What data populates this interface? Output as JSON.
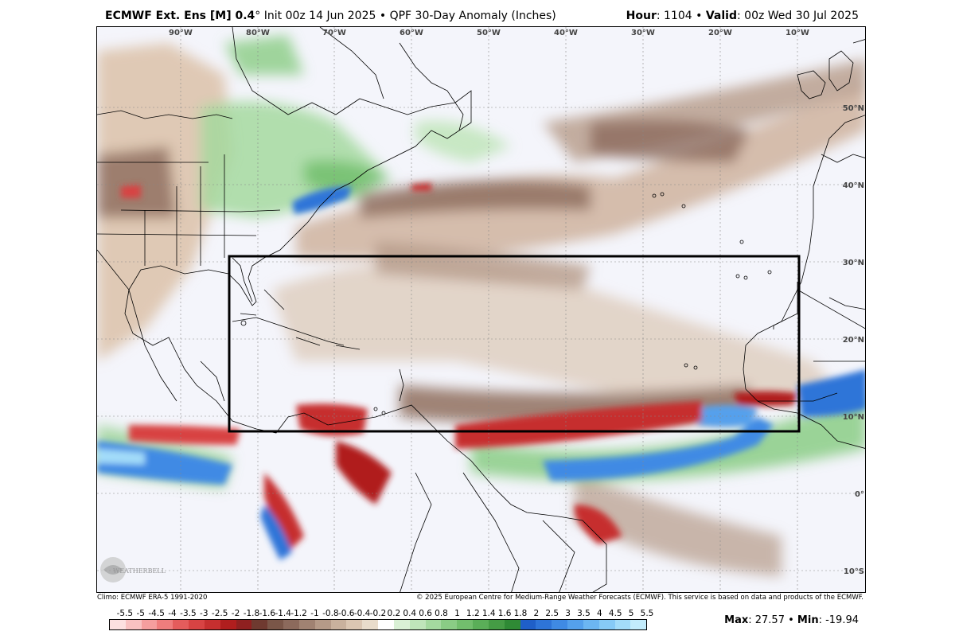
{
  "header": {
    "model": "ECMWF Ext. Ens [M] 0.4",
    "degree": "°",
    "init": " Init 00z 14 Jun 2025",
    "bullet": " • ",
    "product": "QPF 30-Day Anomaly (Inches)",
    "hour_label": "Hour",
    "hour_value": ": 1104",
    "valid_label": "Valid",
    "valid_value": ": 00z Wed 30 Jul 2025"
  },
  "map": {
    "longitudes": [
      "90°W",
      "80°W",
      "70°W",
      "60°W",
      "50°W",
      "40°W",
      "30°W",
      "20°W",
      "10°W"
    ],
    "latitudes": [
      "50°N",
      "40°N",
      "30°N",
      "20°N",
      "10°N",
      "0°",
      "10°S"
    ],
    "logo_text": "WEATHERBELL"
  },
  "footer": {
    "climo": "Climo: ECMWF ERA-5 1991-2020",
    "copyright": "© 2025 European Centre for Medium-Range Weather Forecasts (ECMWF). This service is based on data and products of the ECMWF."
  },
  "colorbar": {
    "labels": [
      "-5.5",
      "-5",
      "-4.5",
      "-4",
      "-3.5",
      "-3",
      "-2.5",
      "-2",
      "-1.8",
      "-1.6",
      "-1.4",
      "-1.2",
      "-1",
      "-0.8",
      "-0.6",
      "-0.4",
      "-0.2",
      "0.2",
      "0.4",
      "0.6",
      "0.8",
      "1",
      "1.2",
      "1.4",
      "1.6",
      "1.8",
      "2",
      "2.5",
      "3",
      "3.5",
      "4",
      "4.5",
      "5",
      "5.5"
    ],
    "colors": [
      "#fde0e0",
      "#f9c1c1",
      "#f59e9e",
      "#ef7d7d",
      "#e45c5c",
      "#d84343",
      "#c62f2f",
      "#b01e1e",
      "#8f2020",
      "#6f3a30",
      "#7a5648",
      "#8c6a5c",
      "#a08272",
      "#b59a88",
      "#c9b19d",
      "#dbc6b2",
      "#e9dccb",
      "#ffffff",
      "#d9f0d5",
      "#bfe5ba",
      "#a4d99f",
      "#8acc85",
      "#72be6d",
      "#5aae58",
      "#459c45",
      "#2f8a35",
      "#1f5fc8",
      "#2e74d8",
      "#3f8ae4",
      "#54a0ec",
      "#6cb6f2",
      "#86caf6",
      "#a3dcf9",
      "#c2ecfc"
    ]
  },
  "stats": {
    "max_label": "Max",
    "max_value": ": 27.57",
    "sep": " • ",
    "min_label": "Min",
    "min_value": ": -19.94"
  }
}
